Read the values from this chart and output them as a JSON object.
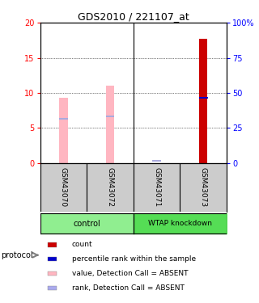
{
  "title": "GDS2010 / 221107_at",
  "samples": [
    "GSM43070",
    "GSM43072",
    "GSM43071",
    "GSM43073"
  ],
  "bar_values": [
    9.3,
    11.0,
    0.0,
    17.7
  ],
  "bar_colors": [
    "#ffb6c1",
    "#ffb6c1",
    "#ffb6c1",
    "#cc0000"
  ],
  "blue_rank_values": [
    6.3,
    6.7,
    0.3,
    9.3
  ],
  "absent_flags": [
    true,
    true,
    true,
    false
  ],
  "ylim_left": [
    0,
    20
  ],
  "ylim_right": [
    0,
    100
  ],
  "yticks_left": [
    0,
    5,
    10,
    15,
    20
  ],
  "yticks_right": [
    0,
    25,
    50,
    75,
    100
  ],
  "bar_width": 0.18,
  "bg_color": "#ffffff",
  "label_area_color": "#cccccc",
  "group_color_control": "#90ee90",
  "group_color_wtap": "#55dd55",
  "legend_colors": [
    "#cc0000",
    "#0000cc",
    "#ffb6c1",
    "#aaaaee"
  ],
  "legend_labels": [
    "count",
    "percentile rank within the sample",
    "value, Detection Call = ABSENT",
    "rank, Detection Call = ABSENT"
  ]
}
